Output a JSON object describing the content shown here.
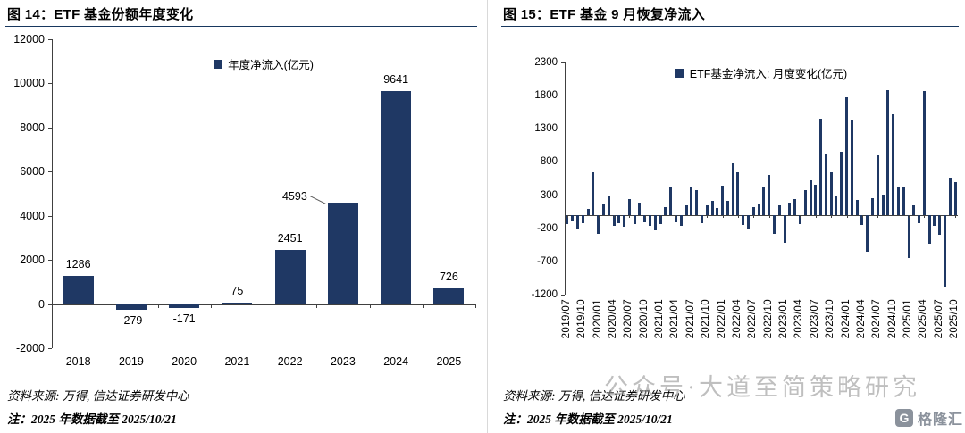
{
  "page": {
    "background": "#ffffff",
    "accent_navy": "#1F3864",
    "watermark": "公众号·大道至简策略研究",
    "logo_text": "格隆汇",
    "logo_glyph": "G"
  },
  "left_panel": {
    "title": "图 14：ETF 基金份额年度变化",
    "source": "资料来源: 万得, 信达证券研发中心",
    "note": "注：2025 年数据截至 2025/10/21"
  },
  "right_panel": {
    "title": "图 15：ETF 基金 9 月恢复净流入",
    "source": "资料来源: 万得, 信达证券研发中心",
    "note": "注：2025 年数据截至 2025/10/21"
  },
  "chart_data": [
    {
      "type": "bar",
      "title": "图 14：ETF 基金份额年度变化",
      "legend": "年度净流入(亿元)",
      "categories": [
        "2018",
        "2019",
        "2020",
        "2021",
        "2022",
        "2023",
        "2024",
        "2025"
      ],
      "values": [
        1286,
        -279,
        -171,
        75,
        2451,
        4593,
        9641,
        726
      ],
      "bar_color": "#1F3864",
      "ylim": [
        -2000,
        12000
      ],
      "ytick_step": 2000,
      "grid": false,
      "legend_position": "top-center",
      "data_labels": true,
      "callout": {
        "index": 5,
        "dx": -54,
        "dy": 6
      }
    },
    {
      "type": "bar",
      "title": "图 15：ETF 基金 9 月恢复净流入",
      "legend": "ETF基金净流入: 月度变化(亿元)",
      "x": [
        "2019/07",
        "2019/08",
        "2019/09",
        "2019/10",
        "2019/11",
        "2019/12",
        "2020/01",
        "2020/02",
        "2020/03",
        "2020/04",
        "2020/05",
        "2020/06",
        "2020/07",
        "2020/08",
        "2020/09",
        "2020/10",
        "2020/11",
        "2020/12",
        "2021/01",
        "2021/02",
        "2021/03",
        "2021/04",
        "2021/05",
        "2021/06",
        "2021/07",
        "2021/08",
        "2021/09",
        "2021/10",
        "2021/11",
        "2021/12",
        "2022/01",
        "2022/02",
        "2022/03",
        "2022/04",
        "2022/05",
        "2022/06",
        "2022/07",
        "2022/08",
        "2022/09",
        "2022/10",
        "2022/11",
        "2022/12",
        "2023/01",
        "2023/02",
        "2023/03",
        "2023/04",
        "2023/05",
        "2023/06",
        "2023/07",
        "2023/08",
        "2023/09",
        "2023/10",
        "2023/11",
        "2023/12",
        "2024/01",
        "2024/02",
        "2024/03",
        "2024/04",
        "2024/05",
        "2024/06",
        "2024/07",
        "2024/08",
        "2024/09",
        "2024/10",
        "2024/11",
        "2024/12",
        "2025/01",
        "2025/02",
        "2025/03",
        "2025/04",
        "2025/05",
        "2025/06",
        "2025/07",
        "2025/08",
        "2025/09",
        "2025/10"
      ],
      "values": [
        -140,
        -90,
        -210,
        -120,
        90,
        650,
        -280,
        160,
        300,
        -160,
        -120,
        -180,
        240,
        -130,
        190,
        -110,
        -170,
        -230,
        -140,
        120,
        430,
        -110,
        -160,
        150,
        420,
        380,
        -120,
        140,
        220,
        110,
        440,
        210,
        780,
        640,
        -150,
        -210,
        120,
        160,
        430,
        610,
        -290,
        140,
        -420,
        180,
        240,
        -130,
        380,
        520,
        460,
        1450,
        930,
        640,
        290,
        960,
        1780,
        1440,
        230,
        -150,
        -560,
        260,
        900,
        310,
        1880,
        1520,
        410,
        430,
        -650,
        150,
        -120,
        1870,
        -430,
        -160,
        -300,
        -1080,
        560,
        490
      ],
      "bar_color": "#1F3864",
      "ylim": [
        -1200,
        2300
      ],
      "ytick_step": 500,
      "xtick_every": 3,
      "grid": false,
      "legend_position": "top-center",
      "data_labels": false
    }
  ]
}
